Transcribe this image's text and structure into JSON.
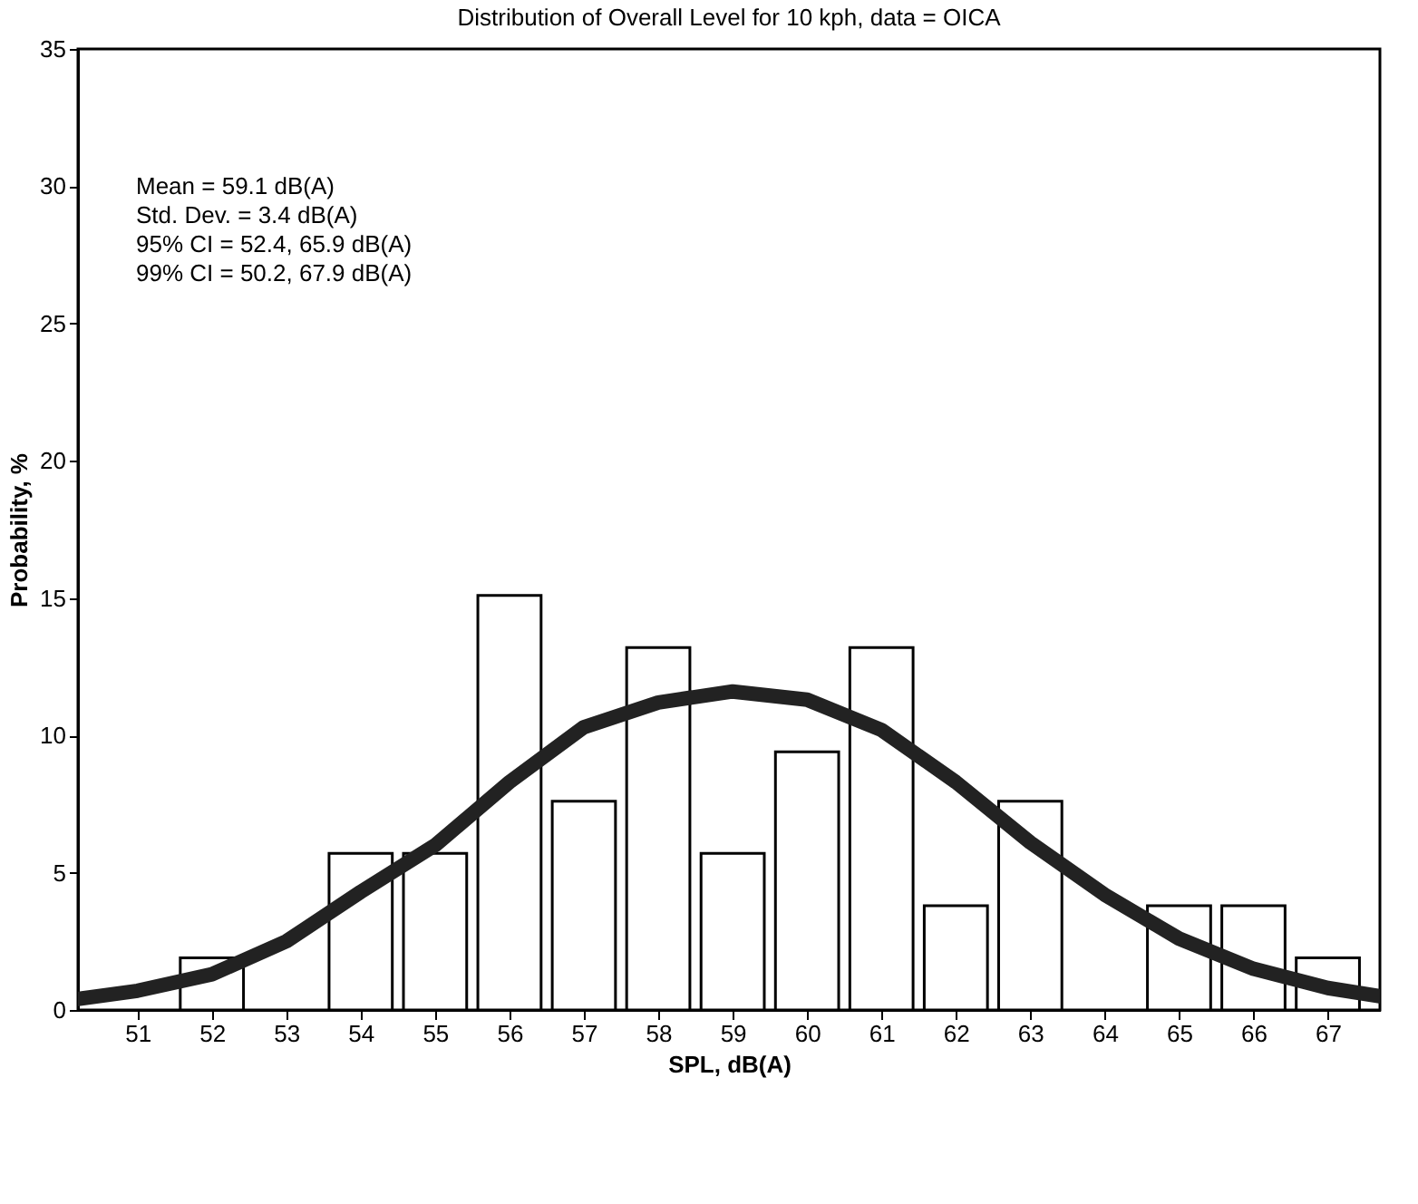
{
  "chart_data": {
    "type": "bar",
    "title": "Distribution of Overall Level for 10 kph, data = OICA",
    "xlabel": "SPL, dB(A)",
    "ylabel": "Probability, %",
    "xlim": [
      50.2,
      67.7
    ],
    "xticks": [
      51,
      52,
      53,
      54,
      55,
      56,
      57,
      58,
      59,
      60,
      61,
      62,
      63,
      64,
      65,
      66,
      67
    ],
    "ylim": [
      0,
      35
    ],
    "yticks": [
      0,
      5,
      10,
      15,
      20,
      25,
      30,
      35
    ],
    "annotations": [
      "Mean = 59.1 dB(A)",
      "Std. Dev. = 3.4 dB(A)",
      "95% CI = 52.4, 65.9 dB(A)",
      "99% CI = 50.2, 67.9 dB(A)"
    ],
    "series": [
      {
        "color": "#ffffff",
        "x": [
          52,
          54,
          55,
          56,
          57,
          58,
          59,
          60,
          61,
          62,
          63,
          65,
          66,
          67
        ],
        "values": [
          1.9,
          5.7,
          5.7,
          15.1,
          7.6,
          13.2,
          5.7,
          9.4,
          13.2,
          3.8,
          7.6,
          3.8,
          3.8,
          1.9
        ]
      },
      {
        "type": "line",
        "color": "#222222",
        "x": [
          50.2,
          51,
          52,
          53,
          54,
          55,
          56,
          57,
          58,
          59,
          60,
          61,
          62,
          63,
          64,
          65,
          66,
          67,
          67.7
        ],
        "values": [
          0.4,
          0.7,
          1.3,
          2.5,
          4.3,
          6.0,
          8.3,
          10.3,
          11.2,
          11.6,
          11.3,
          10.2,
          8.3,
          6.1,
          4.2,
          2.6,
          1.5,
          0.8,
          0.5
        ]
      }
    ]
  }
}
